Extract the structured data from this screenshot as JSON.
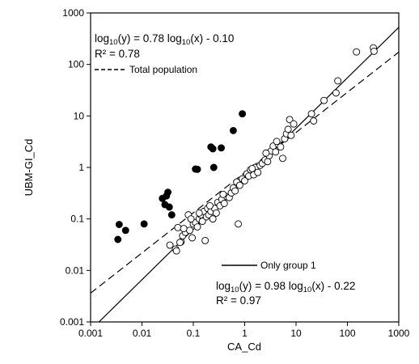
{
  "chart_data": {
    "type": "scatter",
    "title": "",
    "xlabel": "CA_Cd",
    "ylabel": "UBM-GI_Cd",
    "x_scale": "log",
    "y_scale": "log",
    "xlim": [
      0.001,
      1000
    ],
    "ylim": [
      0.001,
      1000
    ],
    "x_ticks": [
      "0.001",
      "0.01",
      "0.1",
      "1",
      "10",
      "100",
      "1000"
    ],
    "y_ticks": [
      "0.001",
      "0.01",
      "0.1",
      "1",
      "10",
      "100",
      "1000"
    ],
    "grid": false,
    "annotations": {
      "total": {
        "eq_prefix": "log",
        "eq_sub": "10",
        "eq_mid": "(y) = 0.78 log",
        "eq_sub2": "10",
        "eq_suffix": "(x) - 0.10",
        "r2": "R² = 0.78",
        "legend": "Total population"
      },
      "group1": {
        "eq_prefix": "log",
        "eq_sub": "10",
        "eq_mid": "(y) = 0.98 log",
        "eq_sub2": "10",
        "eq_suffix": "(x) - 0.22",
        "r2": "R² = 0.97",
        "legend": "Only group 1"
      }
    },
    "lines": [
      {
        "style": "dashed",
        "slope": 0.78,
        "intercept": -0.1
      },
      {
        "style": "solid",
        "slope": 0.98,
        "intercept": -0.22
      }
    ],
    "series": [
      {
        "marker": "filled-circle",
        "points": [
          [
            0.0034,
            0.04
          ],
          [
            0.0036,
            0.078
          ],
          [
            0.0048,
            0.06
          ],
          [
            0.011,
            0.08
          ],
          [
            0.025,
            0.25
          ],
          [
            0.028,
            0.19
          ],
          [
            0.03,
            0.28
          ],
          [
            0.032,
            0.33
          ],
          [
            0.034,
            0.17
          ],
          [
            0.038,
            0.12
          ],
          [
            0.11,
            0.93
          ],
          [
            0.12,
            0.92
          ],
          [
            0.22,
            2.5
          ],
          [
            0.24,
            2.3
          ],
          [
            0.25,
            1.0
          ],
          [
            0.35,
            2.4
          ],
          [
            0.6,
            5.2
          ],
          [
            0.9,
            11.0
          ]
        ]
      },
      {
        "marker": "open-circle",
        "points": [
          [
            0.035,
            0.031
          ],
          [
            0.045,
            0.026
          ],
          [
            0.047,
            0.024
          ],
          [
            0.05,
            0.068
          ],
          [
            0.058,
            0.036
          ],
          [
            0.062,
            0.047
          ],
          [
            0.07,
            0.055
          ],
          [
            0.08,
            0.12
          ],
          [
            0.085,
            0.06
          ],
          [
            0.095,
            0.043
          ],
          [
            0.1,
            0.08
          ],
          [
            0.11,
            0.085
          ],
          [
            0.12,
            0.07
          ],
          [
            0.13,
            0.1
          ],
          [
            0.14,
            0.12
          ],
          [
            0.15,
            0.09
          ],
          [
            0.16,
            0.14
          ],
          [
            0.17,
            0.038
          ],
          [
            0.18,
            0.11
          ],
          [
            0.19,
            0.16
          ],
          [
            0.2,
            0.12
          ],
          [
            0.22,
            0.14
          ],
          [
            0.24,
            0.1
          ],
          [
            0.26,
            0.16
          ],
          [
            0.28,
            0.13
          ],
          [
            0.3,
            0.21
          ],
          [
            0.33,
            0.18
          ],
          [
            0.36,
            0.24
          ],
          [
            0.4,
            0.2
          ],
          [
            0.45,
            0.27
          ],
          [
            0.5,
            0.26
          ],
          [
            0.55,
            0.32
          ],
          [
            0.6,
            0.4
          ],
          [
            0.7,
            0.52
          ],
          [
            0.75,
            0.08
          ],
          [
            0.8,
            0.45
          ],
          [
            0.9,
            0.6
          ],
          [
            1.0,
            0.55
          ],
          [
            1.1,
            0.75
          ],
          [
            1.2,
            0.68
          ],
          [
            1.3,
            0.9
          ],
          [
            1.5,
            0.72
          ],
          [
            1.6,
            1.0
          ],
          [
            1.8,
            0.8
          ],
          [
            2.0,
            1.1
          ],
          [
            2.2,
            1.2
          ],
          [
            2.5,
            1.4
          ],
          [
            2.8,
            1.3
          ],
          [
            3.0,
            1.7
          ],
          [
            3.3,
            2.1
          ],
          [
            3.6,
            2.6
          ],
          [
            4.0,
            2.0
          ],
          [
            4.5,
            2.8
          ],
          [
            5.0,
            2.5
          ],
          [
            5.5,
            1.5
          ],
          [
            6.0,
            3.6
          ],
          [
            6.5,
            4.5
          ],
          [
            7.0,
            5.5
          ],
          [
            7.5,
            8.5
          ],
          [
            8.0,
            4.2
          ],
          [
            9.0,
            7.0
          ],
          [
            20.0,
            11.0
          ],
          [
            22.0,
            8.0
          ],
          [
            35.0,
            20.0
          ],
          [
            60.0,
            28.0
          ],
          [
            65.0,
            48.0
          ],
          [
            150.0,
            175.0
          ],
          [
            320.0,
            210.0
          ],
          [
            330.0,
            180.0
          ],
          [
            0.055,
            0.035
          ],
          [
            0.065,
            0.065
          ],
          [
            0.09,
            0.1
          ],
          [
            0.13,
            0.13
          ],
          [
            0.21,
            0.18
          ],
          [
            0.38,
            0.3
          ],
          [
            0.65,
            0.35
          ],
          [
            1.4,
            0.95
          ],
          [
            2.6,
            1.9
          ],
          [
            4.2,
            3.2
          ]
        ]
      }
    ]
  }
}
